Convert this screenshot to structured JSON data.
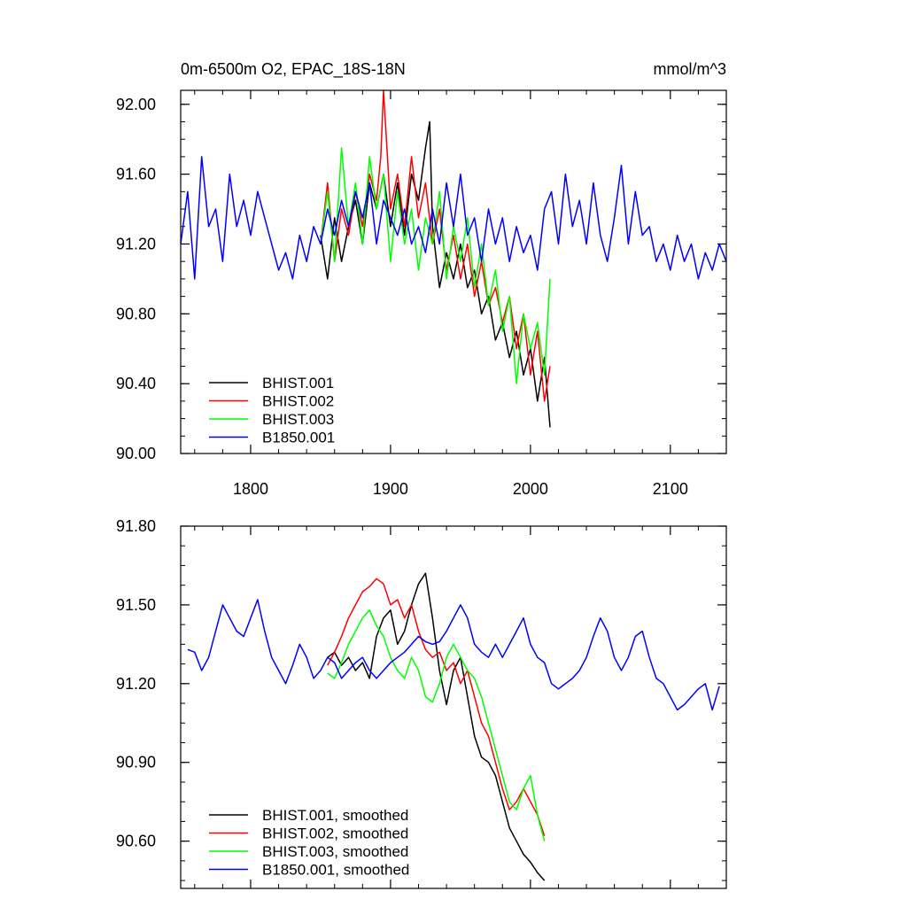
{
  "chart_data": [
    {
      "type": "line",
      "title": "0m-6500m O2, EPAC_18S-18N",
      "units": "mmol/m^3",
      "xlim": [
        1750,
        2140
      ],
      "ylim": [
        90.0,
        92.08
      ],
      "x_ticks": [
        1800,
        1900,
        2000,
        2100
      ],
      "y_ticks": [
        90.0,
        90.4,
        90.8,
        91.2,
        91.6,
        92.0
      ],
      "y_tick_labels": [
        "90.00",
        "90.40",
        "90.80",
        "91.20",
        "91.60",
        "92.00"
      ],
      "legend_position": "bottom-left",
      "series": [
        {
          "name": "BHIST.001",
          "color": "#000000",
          "x": [
            1850,
            1855,
            1860,
            1865,
            1870,
            1875,
            1880,
            1885,
            1890,
            1895,
            1900,
            1905,
            1910,
            1915,
            1920,
            1925,
            1928,
            1930,
            1935,
            1940,
            1945,
            1950,
            1955,
            1960,
            1965,
            1970,
            1975,
            1980,
            1985,
            1990,
            1995,
            2000,
            2005,
            2010,
            2014
          ],
          "y": [
            91.25,
            91.0,
            91.35,
            91.1,
            91.3,
            91.45,
            91.2,
            91.55,
            91.4,
            91.6,
            91.3,
            91.55,
            91.25,
            91.6,
            91.45,
            91.75,
            91.9,
            91.3,
            90.95,
            91.15,
            91.0,
            91.2,
            90.95,
            91.05,
            90.8,
            90.9,
            90.65,
            90.75,
            90.55,
            90.7,
            90.45,
            90.6,
            90.3,
            90.55,
            90.15
          ]
        },
        {
          "name": "BHIST.002",
          "color": "#ff0000",
          "x": [
            1850,
            1855,
            1860,
            1865,
            1870,
            1875,
            1880,
            1885,
            1890,
            1893,
            1895,
            1900,
            1905,
            1910,
            1915,
            1920,
            1925,
            1930,
            1935,
            1940,
            1945,
            1950,
            1955,
            1960,
            1965,
            1970,
            1975,
            1980,
            1985,
            1990,
            1995,
            2000,
            2005,
            2010,
            2014
          ],
          "y": [
            91.2,
            91.55,
            91.1,
            91.4,
            91.25,
            91.5,
            91.3,
            91.6,
            91.45,
            91.7,
            92.08,
            91.4,
            91.6,
            91.3,
            91.7,
            91.35,
            91.55,
            91.2,
            91.4,
            91.05,
            91.25,
            91.0,
            91.2,
            90.9,
            91.1,
            90.85,
            90.95,
            90.75,
            90.9,
            90.6,
            90.8,
            90.45,
            90.7,
            90.3,
            90.5
          ]
        },
        {
          "name": "BHIST.003",
          "color": "#00ff00",
          "x": [
            1850,
            1855,
            1860,
            1865,
            1870,
            1875,
            1880,
            1885,
            1890,
            1895,
            1900,
            1905,
            1910,
            1915,
            1920,
            1925,
            1930,
            1935,
            1940,
            1945,
            1950,
            1955,
            1960,
            1965,
            1970,
            1975,
            1980,
            1985,
            1990,
            1995,
            2000,
            2005,
            2010,
            2014
          ],
          "y": [
            91.2,
            91.5,
            91.1,
            91.75,
            91.3,
            91.55,
            91.2,
            91.7,
            91.4,
            91.6,
            91.1,
            91.5,
            91.2,
            91.4,
            91.05,
            91.35,
            91.2,
            91.5,
            91.0,
            91.3,
            91.1,
            91.35,
            90.95,
            91.2,
            90.85,
            91.05,
            90.7,
            90.9,
            90.4,
            90.8,
            90.6,
            90.75,
            90.45,
            91.0
          ]
        },
        {
          "name": "B1850.001",
          "color": "#0000ff",
          "x": [
            1750,
            1755,
            1760,
            1765,
            1770,
            1775,
            1780,
            1785,
            1790,
            1795,
            1800,
            1805,
            1810,
            1815,
            1820,
            1825,
            1830,
            1835,
            1840,
            1845,
            1850,
            1855,
            1860,
            1865,
            1870,
            1875,
            1880,
            1885,
            1890,
            1895,
            1900,
            1905,
            1910,
            1915,
            1920,
            1925,
            1930,
            1935,
            1940,
            1945,
            1950,
            1955,
            1960,
            1965,
            1970,
            1975,
            1980,
            1985,
            1990,
            1995,
            2000,
            2005,
            2010,
            2015,
            2020,
            2025,
            2030,
            2035,
            2040,
            2045,
            2050,
            2055,
            2060,
            2065,
            2070,
            2075,
            2080,
            2085,
            2090,
            2095,
            2100,
            2105,
            2110,
            2115,
            2120,
            2125,
            2130,
            2135,
            2140
          ],
          "y": [
            91.2,
            91.5,
            91.0,
            91.7,
            91.3,
            91.4,
            91.1,
            91.6,
            91.3,
            91.45,
            91.25,
            91.5,
            91.35,
            91.2,
            91.05,
            91.15,
            91.0,
            91.25,
            91.1,
            91.3,
            91.2,
            91.4,
            91.25,
            91.45,
            91.3,
            91.5,
            91.35,
            91.55,
            91.2,
            91.45,
            91.35,
            91.25,
            91.4,
            91.2,
            91.3,
            91.15,
            91.4,
            91.2,
            91.55,
            91.3,
            91.6,
            91.25,
            91.35,
            91.1,
            91.4,
            91.2,
            91.35,
            91.1,
            91.3,
            91.15,
            91.25,
            91.05,
            91.4,
            91.5,
            91.2,
            91.6,
            91.3,
            91.45,
            91.2,
            91.55,
            91.25,
            91.1,
            91.35,
            91.65,
            91.2,
            91.5,
            91.25,
            91.3,
            91.1,
            91.2,
            91.05,
            91.25,
            91.1,
            91.2,
            91.0,
            91.15,
            91.05,
            91.2,
            91.1
          ]
        }
      ]
    },
    {
      "type": "line",
      "xlim": [
        1750,
        2140
      ],
      "ylim": [
        90.42,
        91.8
      ],
      "x_ticks": [
        1800,
        1900,
        2000,
        2100
      ],
      "y_ticks": [
        90.6,
        90.9,
        91.2,
        91.5,
        91.8
      ],
      "y_tick_labels": [
        "90.60",
        "90.90",
        "91.20",
        "91.50",
        "91.80"
      ],
      "legend_position": "bottom-left",
      "series": [
        {
          "name": "BHIST.001, smoothed",
          "color": "#000000",
          "x": [
            1855,
            1860,
            1865,
            1870,
            1875,
            1880,
            1885,
            1890,
            1895,
            1900,
            1905,
            1910,
            1915,
            1920,
            1925,
            1930,
            1935,
            1940,
            1945,
            1950,
            1955,
            1960,
            1965,
            1970,
            1975,
            1980,
            1985,
            1990,
            1995,
            2000,
            2005,
            2010
          ],
          "y": [
            91.3,
            91.32,
            91.27,
            91.3,
            91.25,
            91.28,
            91.22,
            91.38,
            91.45,
            91.48,
            91.35,
            91.4,
            91.5,
            91.58,
            91.62,
            91.45,
            91.25,
            91.12,
            91.25,
            91.3,
            91.15,
            91.0,
            90.92,
            90.9,
            90.85,
            90.75,
            90.65,
            90.6,
            90.55,
            90.52,
            90.48,
            90.45
          ]
        },
        {
          "name": "BHIST.002, smoothed",
          "color": "#ff0000",
          "x": [
            1855,
            1860,
            1865,
            1870,
            1875,
            1880,
            1885,
            1890,
            1895,
            1900,
            1905,
            1910,
            1915,
            1920,
            1925,
            1930,
            1935,
            1940,
            1945,
            1950,
            1955,
            1960,
            1965,
            1970,
            1975,
            1980,
            1985,
            1990,
            1995,
            2000,
            2005,
            2010
          ],
          "y": [
            91.27,
            91.32,
            91.38,
            91.45,
            91.5,
            91.55,
            91.57,
            91.6,
            91.58,
            91.5,
            91.52,
            91.45,
            91.5,
            91.4,
            91.33,
            91.3,
            91.32,
            91.25,
            91.28,
            91.2,
            91.25,
            91.15,
            91.05,
            91.0,
            90.9,
            90.8,
            90.72,
            90.75,
            90.8,
            90.75,
            90.7,
            90.62
          ]
        },
        {
          "name": "BHIST.003, smoothed",
          "color": "#00ff00",
          "x": [
            1855,
            1860,
            1865,
            1870,
            1875,
            1880,
            1885,
            1890,
            1895,
            1900,
            1905,
            1910,
            1915,
            1920,
            1925,
            1930,
            1935,
            1940,
            1945,
            1950,
            1955,
            1960,
            1965,
            1970,
            1975,
            1980,
            1985,
            1990,
            1995,
            2000,
            2005,
            2010
          ],
          "y": [
            91.24,
            91.22,
            91.28,
            91.35,
            91.4,
            91.45,
            91.48,
            91.42,
            91.38,
            91.3,
            91.25,
            91.22,
            91.3,
            91.25,
            91.15,
            91.13,
            91.2,
            91.3,
            91.35,
            91.3,
            91.25,
            91.22,
            91.15,
            91.05,
            90.95,
            90.85,
            90.75,
            90.72,
            90.8,
            90.85,
            90.7,
            90.6
          ]
        },
        {
          "name": "B1850.001, smoothed",
          "color": "#0000ff",
          "x": [
            1755,
            1760,
            1765,
            1770,
            1775,
            1780,
            1785,
            1790,
            1795,
            1800,
            1805,
            1810,
            1815,
            1820,
            1825,
            1830,
            1835,
            1840,
            1845,
            1850,
            1855,
            1860,
            1865,
            1870,
            1875,
            1880,
            1885,
            1890,
            1895,
            1900,
            1905,
            1910,
            1915,
            1920,
            1925,
            1930,
            1935,
            1940,
            1945,
            1950,
            1955,
            1960,
            1965,
            1970,
            1975,
            1980,
            1985,
            1990,
            1995,
            2000,
            2005,
            2010,
            2015,
            2020,
            2025,
            2030,
            2035,
            2040,
            2045,
            2050,
            2055,
            2060,
            2065,
            2070,
            2075,
            2080,
            2085,
            2090,
            2095,
            2100,
            2105,
            2110,
            2115,
            2120,
            2125,
            2130,
            2135
          ],
          "y": [
            91.33,
            91.32,
            91.25,
            91.3,
            91.4,
            91.5,
            91.45,
            91.4,
            91.38,
            91.45,
            91.52,
            91.4,
            91.3,
            91.25,
            91.2,
            91.27,
            91.35,
            91.3,
            91.22,
            91.25,
            91.3,
            91.28,
            91.22,
            91.25,
            91.28,
            91.3,
            91.25,
            91.22,
            91.25,
            91.28,
            91.3,
            91.32,
            91.35,
            91.38,
            91.36,
            91.35,
            91.36,
            91.4,
            91.45,
            91.5,
            91.45,
            91.35,
            91.32,
            91.3,
            91.35,
            91.3,
            91.35,
            91.4,
            91.45,
            91.35,
            91.3,
            91.28,
            91.2,
            91.18,
            91.2,
            91.22,
            91.25,
            91.3,
            91.38,
            91.45,
            91.4,
            91.3,
            91.25,
            91.3,
            91.38,
            91.4,
            91.3,
            91.22,
            91.2,
            91.15,
            91.1,
            91.12,
            91.15,
            91.18,
            91.2,
            91.1,
            91.19
          ]
        }
      ]
    }
  ]
}
